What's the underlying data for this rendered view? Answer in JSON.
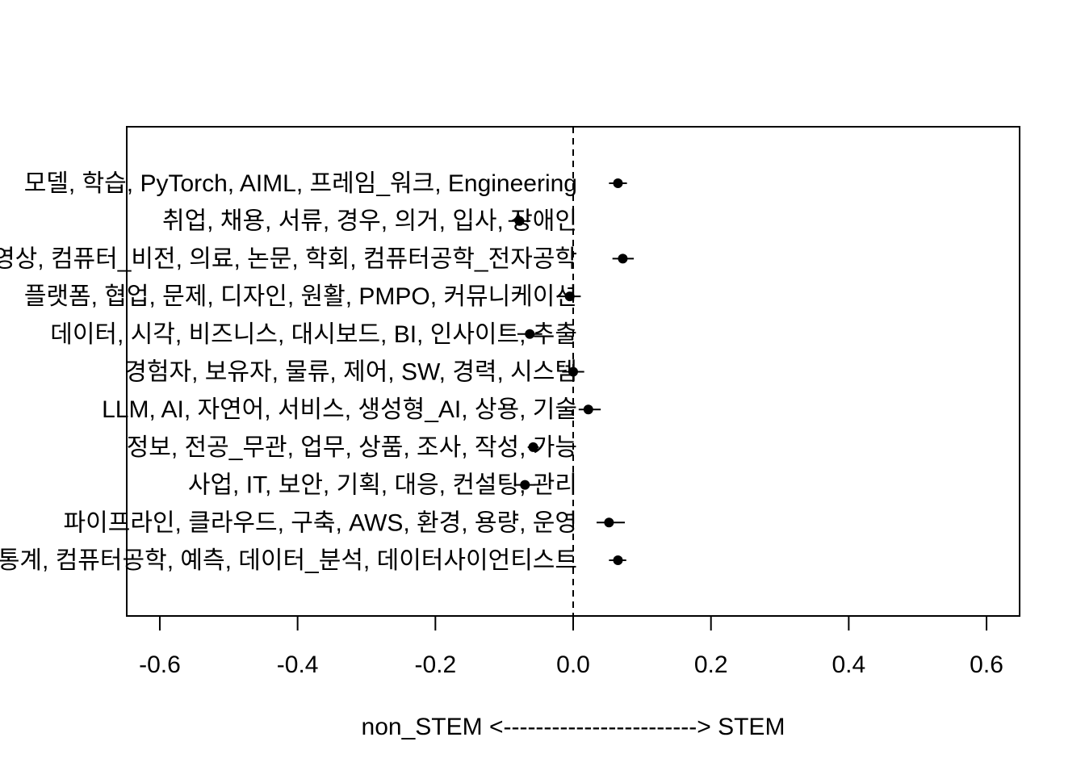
{
  "chart_data": {
    "type": "scatter",
    "orientation": "horizontal",
    "title": "",
    "xlabel": "non_STEM <------------------------> STEM",
    "ylabel": "",
    "xlim": [
      -0.648,
      0.648
    ],
    "x_ticks": [
      -0.6,
      -0.4,
      -0.2,
      0.0,
      0.2,
      0.4,
      0.6
    ],
    "x_tick_labels": [
      "-0.6",
      "-0.4",
      "-0.2",
      "0.0",
      "0.2",
      "0.4",
      "0.6"
    ],
    "reference_line": {
      "x": 0.0,
      "style": "dashed"
    },
    "grid": false,
    "legend": "none",
    "points": [
      {
        "label": "모델, 학습, PyTorch, AIML, 프레임_워크, Engineering",
        "value": 0.065,
        "ci": [
          0.052,
          0.078
        ]
      },
      {
        "label": "취업, 채용, 서류, 경우, 의거, 입사, 장애인",
        "value": -0.078,
        "ci": [
          -0.094,
          -0.062
        ]
      },
      {
        "label": "영상, 컴퓨터_비전, 의료, 논문, 학회, 컴퓨터공학_전자공학",
        "value": 0.072,
        "ci": [
          0.057,
          0.088
        ]
      },
      {
        "label": "플랫폼, 협업, 문제, 디자인, 원활, PMPO, 커뮤니케이션",
        "value": -0.005,
        "ci": [
          -0.021,
          0.011
        ]
      },
      {
        "label": "데이터, 시각, 비즈니스, 대시보드, BI, 인사이트, 추출",
        "value": -0.063,
        "ci": [
          -0.081,
          -0.045
        ]
      },
      {
        "label": "경험자, 보유자, 물류, 제어, SW, 경력, 시스템",
        "value": 0.0,
        "ci": [
          -0.016,
          0.016
        ]
      },
      {
        "label": "LLM, AI, 자연어, 서비스, 생성형_AI, 상용, 기술",
        "value": 0.022,
        "ci": [
          0.008,
          0.04
        ]
      },
      {
        "label": "정보, 전공_무관, 업무, 상품, 조사, 작성, 가능",
        "value": -0.058,
        "ci": [
          -0.066,
          -0.05
        ]
      },
      {
        "label": "사업, IT, 보안, 기획, 대응, 컨설팅, 관리",
        "value": -0.07,
        "ci": [
          -0.086,
          -0.055
        ]
      },
      {
        "label": "파이프라인, 클라우드, 구축, AWS, 환경, 용량, 운영",
        "value": 0.052,
        "ci": [
          0.034,
          0.075
        ]
      },
      {
        "label": "통계, 컴퓨터공학, 예측, 데이터_분석, 데이터사이언티스트",
        "value": 0.065,
        "ci": [
          0.052,
          0.077
        ]
      }
    ]
  }
}
